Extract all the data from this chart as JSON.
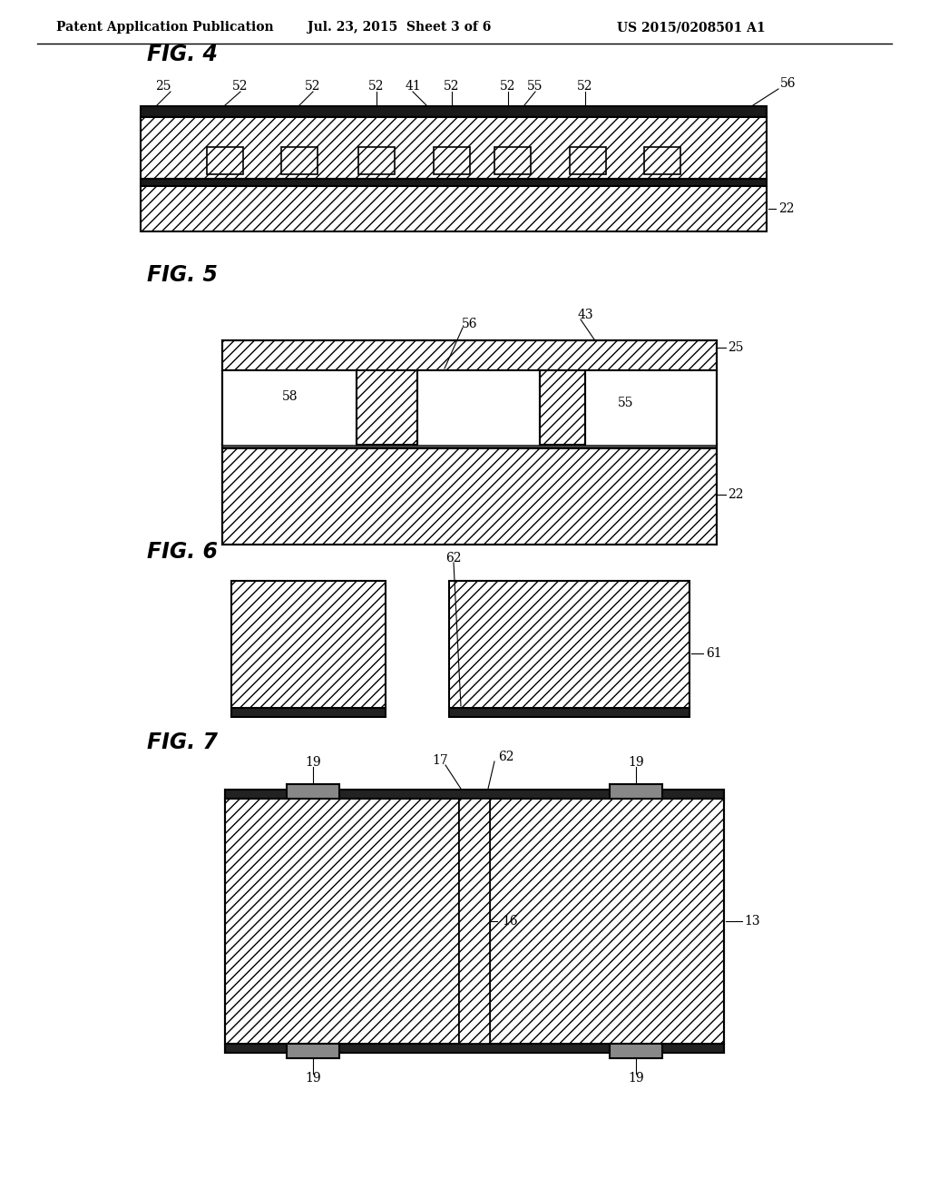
{
  "header_left": "Patent Application Publication",
  "header_center": "Jul. 23, 2015  Sheet 3 of 6",
  "header_right": "US 2015/0208501 A1",
  "bg_color": "#ffffff",
  "line_color": "#000000",
  "fig4_label": "FIG. 4",
  "fig5_label": "FIG. 5",
  "fig6_label": "FIG. 6",
  "fig7_label": "FIG. 7"
}
